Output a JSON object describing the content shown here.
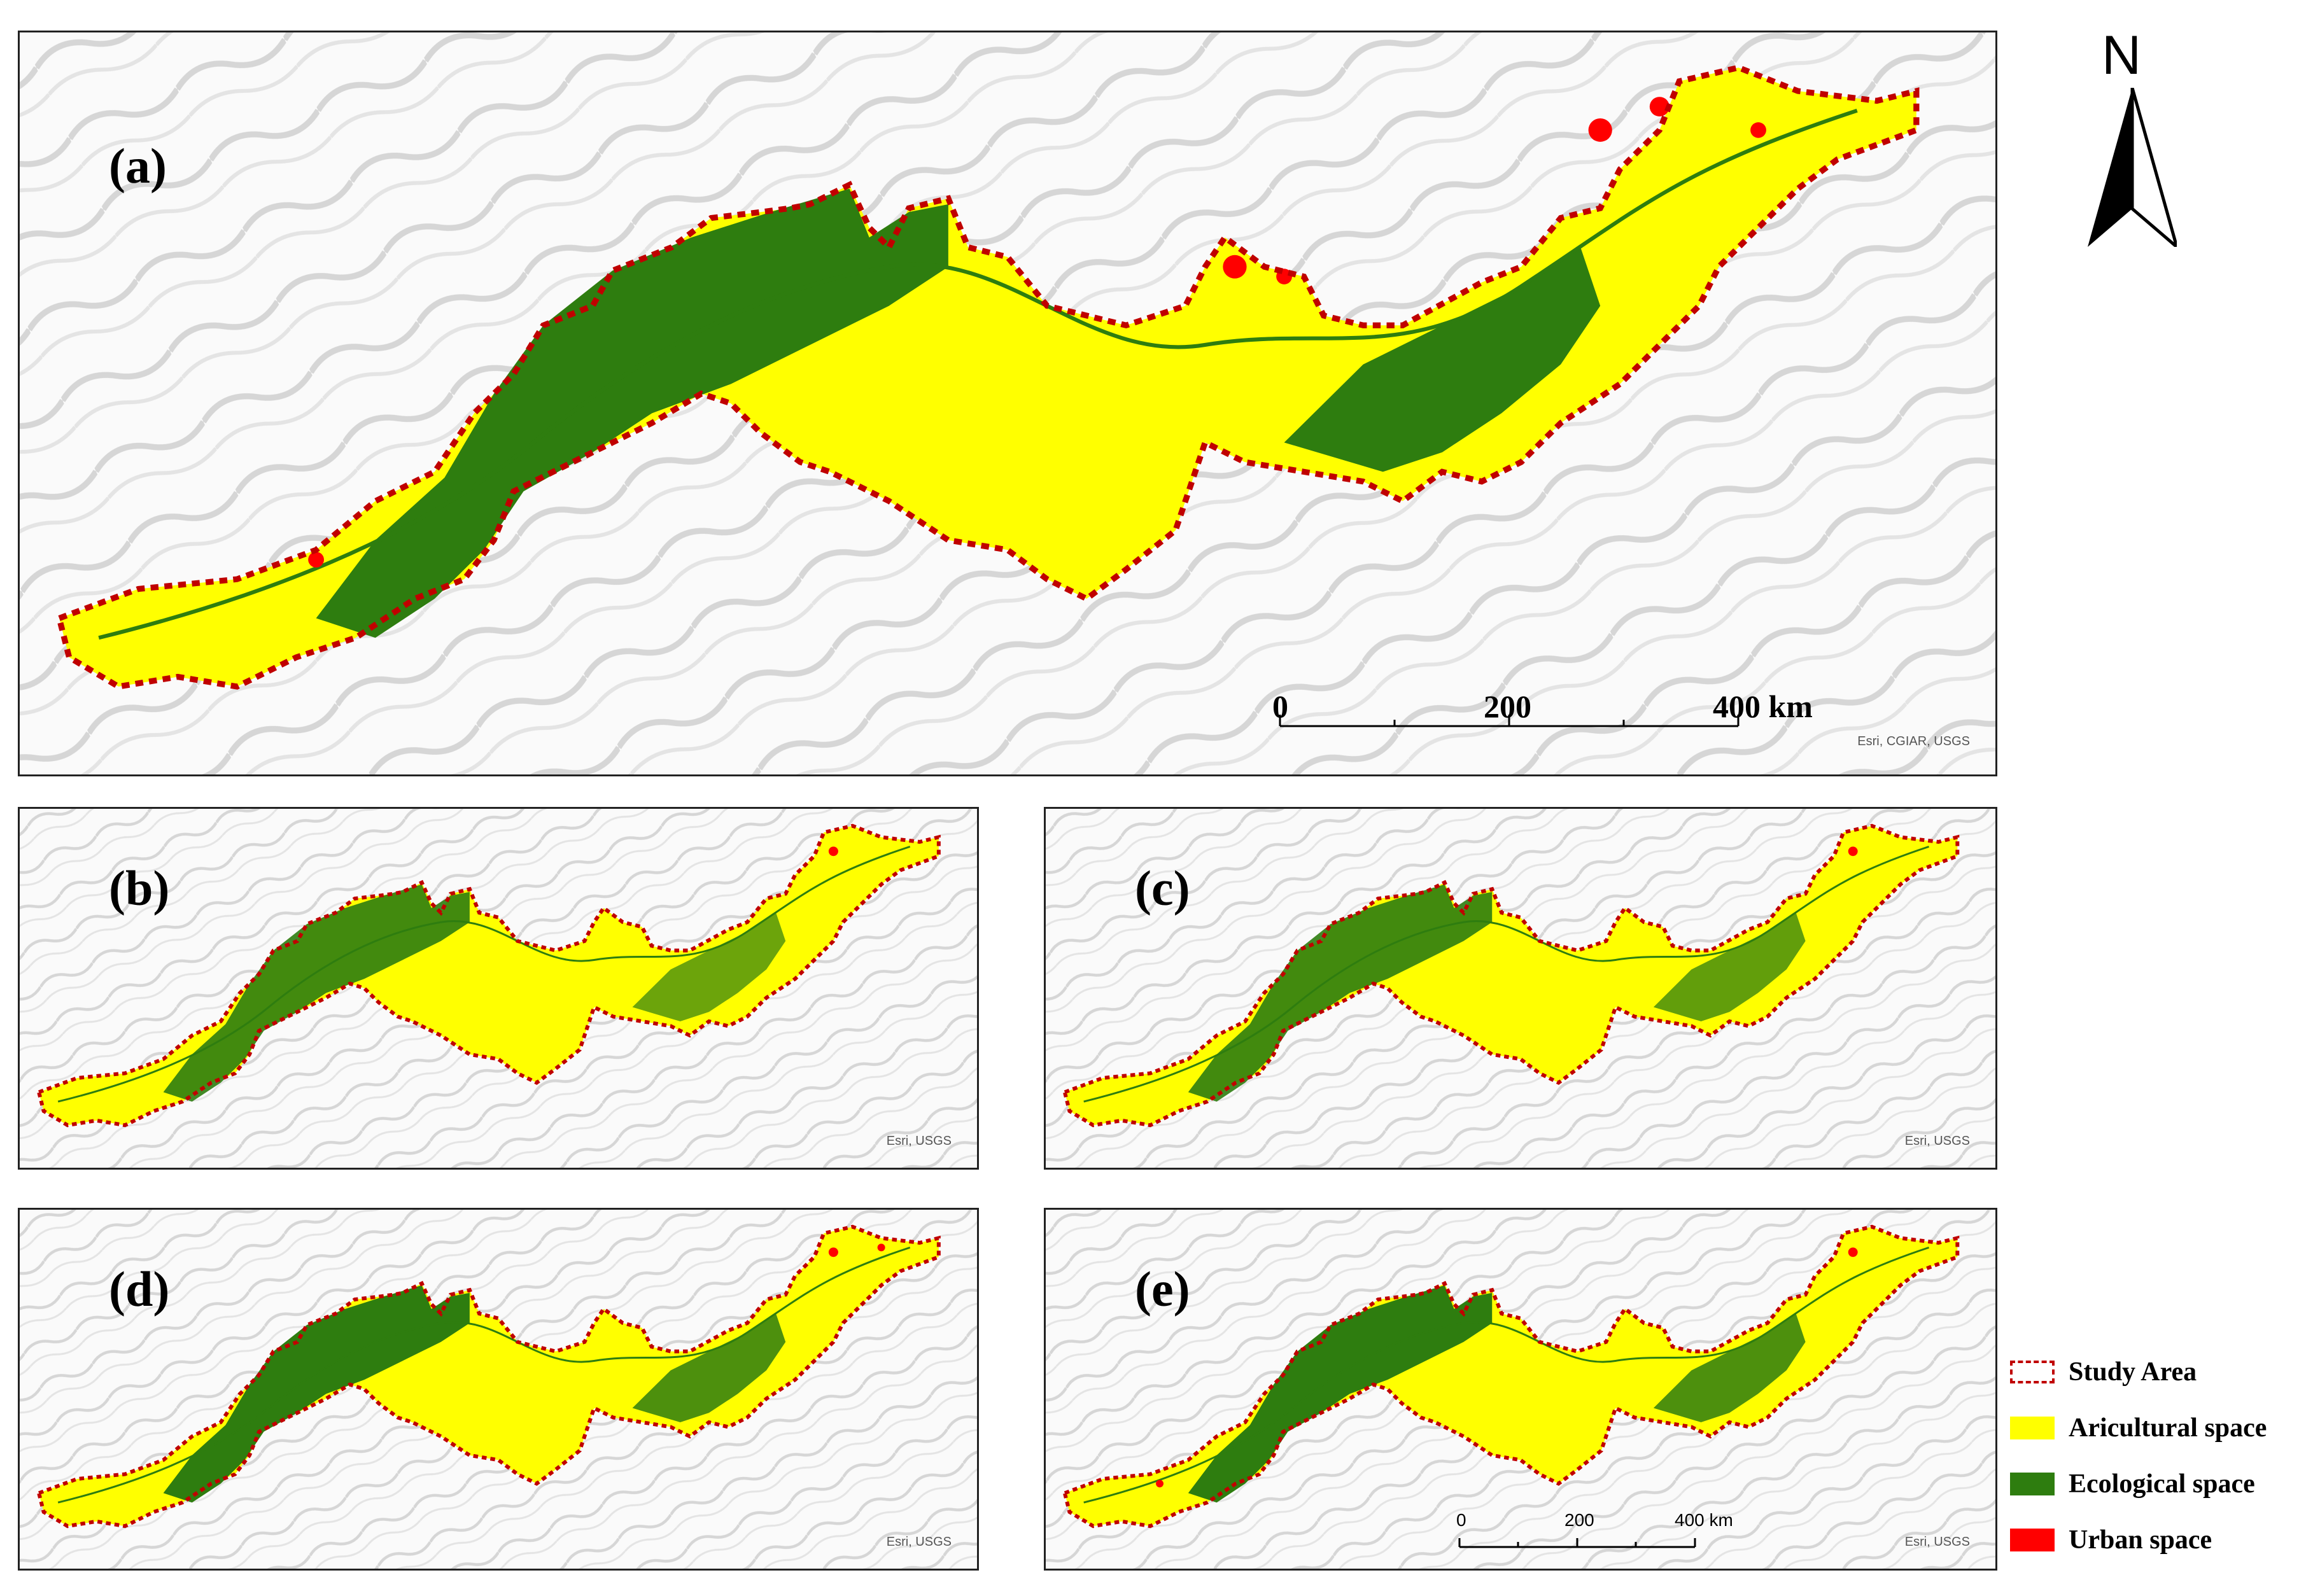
{
  "colors": {
    "study_area_border": "#c00000",
    "agricultural": "#ffff00",
    "ecological": "#2e7d0f",
    "urban": "#ff0000",
    "hillshade": "#cfcfcf"
  },
  "north_arrow": {
    "label": "N"
  },
  "panels": [
    {
      "id": "a",
      "label": "(a)",
      "attribution": "Esri, CGIAR, USGS"
    },
    {
      "id": "b",
      "label": "(b)",
      "attribution": "Esri, USGS"
    },
    {
      "id": "c",
      "label": "(c)",
      "attribution": "Esri, USGS"
    },
    {
      "id": "d",
      "label": "(d)",
      "attribution": "Esri, USGS"
    },
    {
      "id": "e",
      "label": "(e)",
      "attribution": "Esri, USGS"
    }
  ],
  "scale_bar_a": {
    "ticks": [
      "0",
      "200",
      "400 km"
    ]
  },
  "scale_bar_e": {
    "ticks": [
      "0",
      "200",
      "400 km"
    ]
  },
  "legend": [
    {
      "label": "Study Area",
      "icon": "dashed-outline-swatch"
    },
    {
      "label": "Aricultural space",
      "icon": "yellow-swatch"
    },
    {
      "label": "Ecological space",
      "icon": "green-swatch"
    },
    {
      "label": "Urban space",
      "icon": "red-swatch"
    }
  ]
}
